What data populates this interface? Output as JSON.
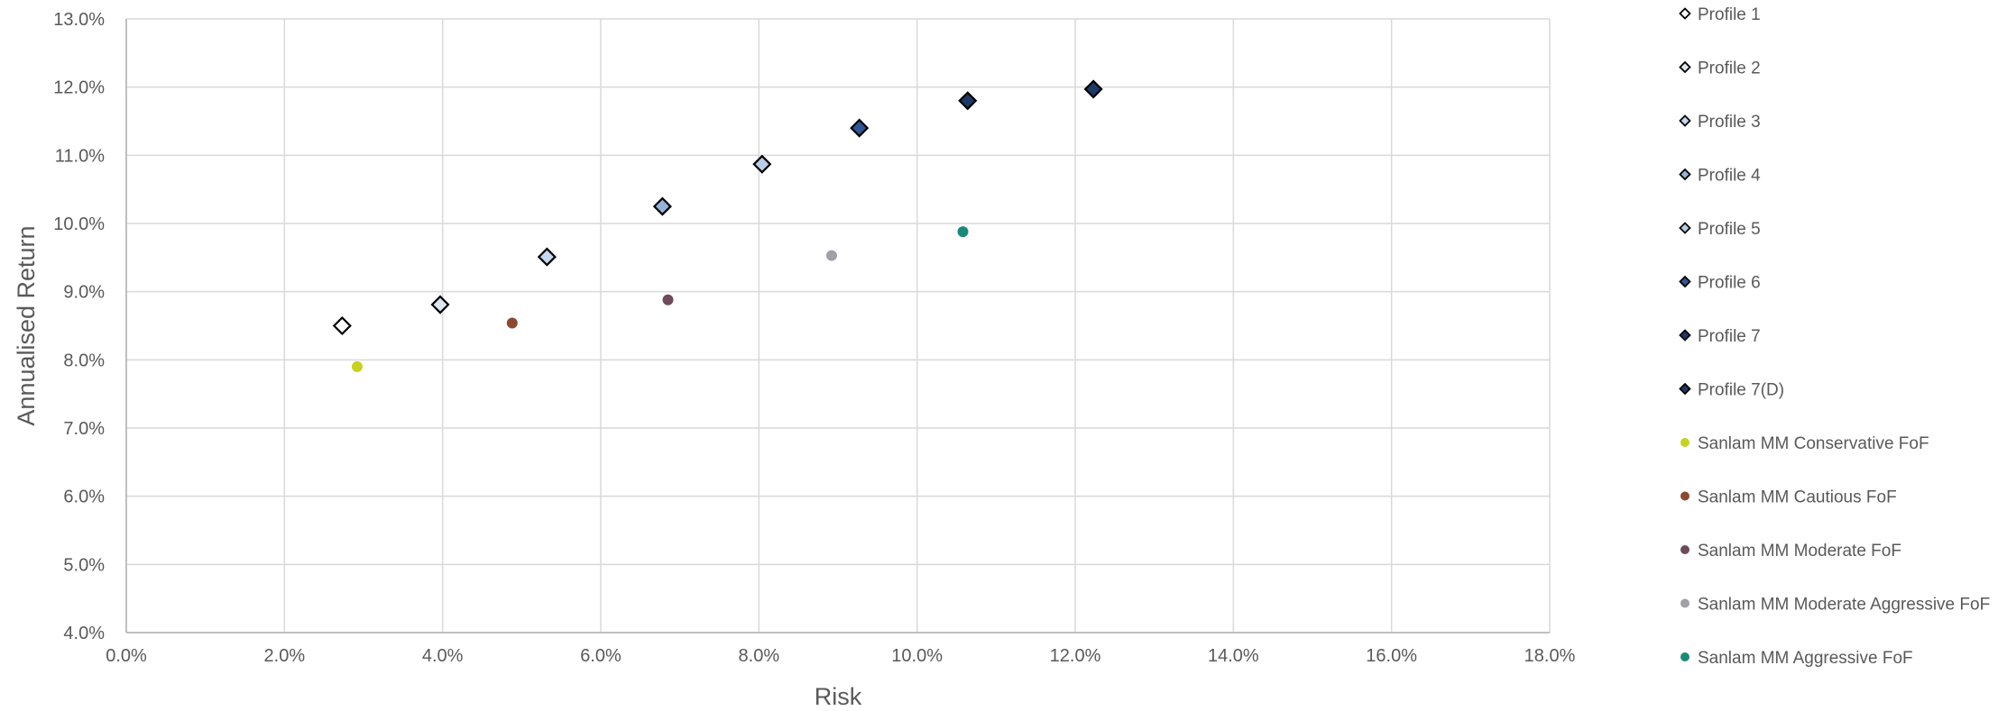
{
  "chart_data": {
    "type": "scatter",
    "xlabel": "Risk",
    "ylabel": "Annualised Return",
    "xlim": [
      0,
      18
    ],
    "ylim": [
      4,
      13
    ],
    "x_ticks": [
      0,
      2,
      4,
      6,
      8,
      10,
      12,
      14,
      16,
      18
    ],
    "y_ticks": [
      4,
      5,
      6,
      7,
      8,
      9,
      10,
      11,
      12,
      13
    ],
    "x_tick_labels": [
      "0.0%",
      "2.0%",
      "4.0%",
      "6.0%",
      "8.0%",
      "10.0%",
      "12.0%",
      "14.0%",
      "16.0%",
      "18.0%"
    ],
    "y_tick_labels": [
      "4.0%",
      "5.0%",
      "6.0%",
      "7.0%",
      "8.0%",
      "9.0%",
      "10.0%",
      "11.0%",
      "12.0%",
      "13.0%"
    ],
    "grid": true,
    "legend_position": "right",
    "series": [
      {
        "name": "Profile 1",
        "marker": "diamond",
        "color": "#ffffff",
        "points": [
          [
            2.73,
            8.5
          ]
        ]
      },
      {
        "name": "Profile 2",
        "marker": "diamond",
        "color": "#dce6f2",
        "points": [
          [
            3.97,
            8.81
          ]
        ]
      },
      {
        "name": "Profile 3",
        "marker": "diamond",
        "color": "#c6d9f1",
        "points": [
          [
            5.32,
            9.51
          ]
        ]
      },
      {
        "name": "Profile 4",
        "marker": "diamond",
        "color": "#95b3d7",
        "points": [
          [
            6.78,
            10.25
          ]
        ]
      },
      {
        "name": "Profile 5",
        "marker": "diamond",
        "color": "#b9cde5",
        "points": [
          [
            8.04,
            10.87
          ]
        ]
      },
      {
        "name": "Profile 6",
        "marker": "diamond",
        "color": "#2f5597",
        "points": [
          [
            9.27,
            11.4
          ]
        ]
      },
      {
        "name": "Profile 7",
        "marker": "diamond",
        "color": "#1f3864",
        "points": [
          [
            10.64,
            11.8
          ]
        ]
      },
      {
        "name": "Profile 7(D)",
        "marker": "diamond",
        "color": "#1f3864",
        "points": [
          [
            12.23,
            11.97
          ]
        ]
      },
      {
        "name": "Sanlam MM Conservative FoF",
        "marker": "circle",
        "color": "#c5d21e",
        "points": [
          [
            2.92,
            7.9
          ]
        ]
      },
      {
        "name": "Sanlam MM Cautious FoF",
        "marker": "circle",
        "color": "#8b4a2f",
        "points": [
          [
            4.88,
            8.54
          ]
        ]
      },
      {
        "name": "Sanlam MM Moderate FoF",
        "marker": "circle",
        "color": "#6e4a5a",
        "points": [
          [
            6.85,
            8.88
          ]
        ]
      },
      {
        "name": "Sanlam MM Moderate Aggressive FoF",
        "marker": "circle",
        "color": "#a0a0a8",
        "points": [
          [
            8.92,
            9.53
          ]
        ]
      },
      {
        "name": "Sanlam MM Aggressive FoF",
        "marker": "circle",
        "color": "#1a8a78",
        "points": [
          [
            10.58,
            9.88
          ]
        ]
      }
    ]
  }
}
